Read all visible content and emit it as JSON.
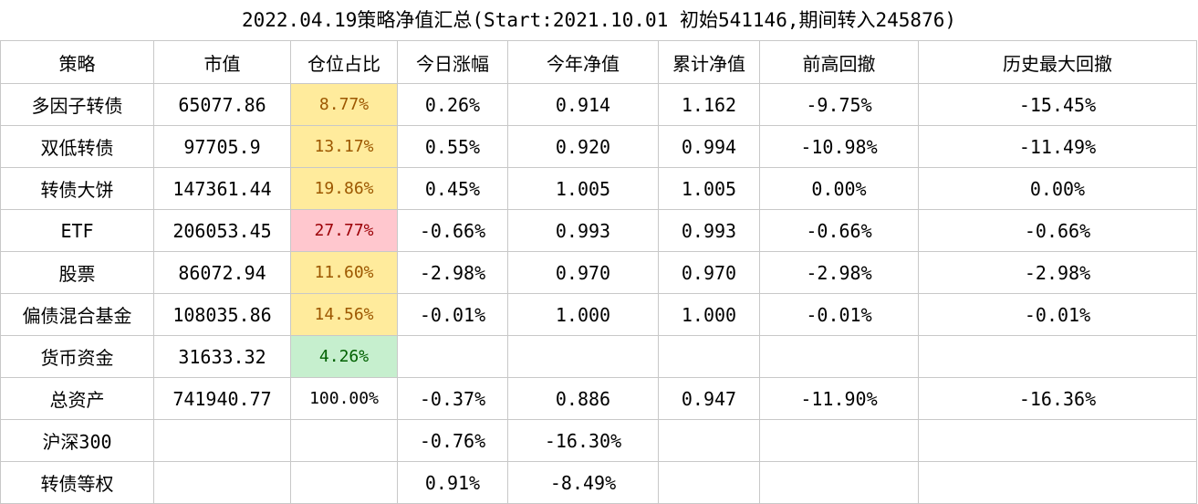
{
  "title": "2022.04.19策略净值汇总(Start:2021.10.01 初始541146,期间转入245876)",
  "headers": [
    "策略",
    "市值",
    "仓位占比",
    "今日涨幅",
    "今年净值",
    "累计净值",
    "前高回撤",
    "历史最大回撤"
  ],
  "rows": [
    {
      "name": "多因子转债",
      "market_value": "65077.86",
      "position": "8.77%",
      "position_status": "yellow",
      "daily_change": "0.26%",
      "ytd_nav": "0.914",
      "cumulative_nav": "1.162",
      "drawdown_from_peak": "-9.75%",
      "max_drawdown": "-15.45%"
    },
    {
      "name": "双低转债",
      "market_value": "97705.9",
      "position": "13.17%",
      "position_status": "yellow",
      "daily_change": "0.55%",
      "ytd_nav": "0.920",
      "cumulative_nav": "0.994",
      "drawdown_from_peak": "-10.98%",
      "max_drawdown": "-11.49%"
    },
    {
      "name": "转债大饼",
      "market_value": "147361.44",
      "position": "19.86%",
      "position_status": "yellow",
      "daily_change": "0.45%",
      "ytd_nav": "1.005",
      "cumulative_nav": "1.005",
      "drawdown_from_peak": "0.00%",
      "max_drawdown": "0.00%"
    },
    {
      "name": "ETF",
      "market_value": "206053.45",
      "position": "27.77%",
      "position_status": "red",
      "daily_change": "-0.66%",
      "ytd_nav": "0.993",
      "cumulative_nav": "0.993",
      "drawdown_from_peak": "-0.66%",
      "max_drawdown": "-0.66%"
    },
    {
      "name": "股票",
      "market_value": "86072.94",
      "position": "11.60%",
      "position_status": "yellow",
      "daily_change": "-2.98%",
      "ytd_nav": "0.970",
      "cumulative_nav": "0.970",
      "drawdown_from_peak": "-2.98%",
      "max_drawdown": "-2.98%"
    },
    {
      "name": "偏债混合基金",
      "market_value": "108035.86",
      "position": "14.56%",
      "position_status": "yellow",
      "daily_change": "-0.01%",
      "ytd_nav": "1.000",
      "cumulative_nav": "1.000",
      "drawdown_from_peak": "-0.01%",
      "max_drawdown": "-0.01%"
    },
    {
      "name": "货币资金",
      "market_value": "31633.32",
      "position": "4.26%",
      "position_status": "green",
      "daily_change": "",
      "ytd_nav": "",
      "cumulative_nav": "",
      "drawdown_from_peak": "",
      "max_drawdown": ""
    },
    {
      "name": "总资产",
      "market_value": "741940.77",
      "position": "100.00%",
      "position_status": "none",
      "daily_change": "-0.37%",
      "ytd_nav": "0.886",
      "cumulative_nav": "0.947",
      "drawdown_from_peak": "-11.90%",
      "max_drawdown": "-16.36%"
    },
    {
      "name": "沪深300",
      "market_value": "",
      "position": "",
      "position_status": "none",
      "daily_change": "-0.76%",
      "ytd_nav": "-16.30%",
      "cumulative_nav": "",
      "drawdown_from_peak": "",
      "max_drawdown": ""
    },
    {
      "name": "转债等权",
      "market_value": "",
      "position": "",
      "position_status": "none",
      "daily_change": "0.91%",
      "ytd_nav": "-8.49%",
      "cumulative_nav": "",
      "drawdown_from_peak": "",
      "max_drawdown": ""
    }
  ],
  "status_colors": {
    "yellow": "#ffeb9c",
    "red": "#ffc7ce",
    "green": "#c6efce"
  }
}
